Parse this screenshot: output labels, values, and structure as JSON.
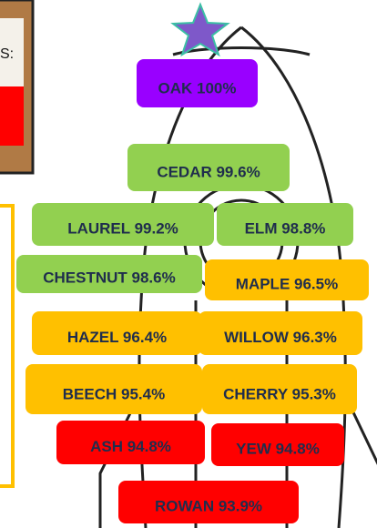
{
  "board": {
    "text": "S:"
  },
  "labels": [
    {
      "text": "OAK 100%",
      "color": "#9900ff"
    },
    {
      "text": "CEDAR 99.6%",
      "color": "#92d050"
    },
    {
      "text": "LAUREL 99.2%",
      "color": "#92d050"
    },
    {
      "text": "ELM 98.8%",
      "color": "#92d050"
    },
    {
      "text": "CHESTNUT 98.6%",
      "color": "#92d050"
    },
    {
      "text": "MAPLE 96.5%",
      "color": "#ffc000"
    },
    {
      "text": "HAZEL 96.4%",
      "color": "#ffc000"
    },
    {
      "text": "WILLOW 96.3%",
      "color": "#ffc000"
    },
    {
      "text": "BEECH 95.4%",
      "color": "#ffc000"
    },
    {
      "text": "CHERRY 95.3%",
      "color": "#ffc000"
    },
    {
      "text": "ASH 94.8%",
      "color": "#ff0000"
    },
    {
      "text": "YEW 94.8%",
      "color": "#ff0000"
    },
    {
      "text": "ROWAN 93.9%",
      "color": "#ff0000"
    }
  ]
}
